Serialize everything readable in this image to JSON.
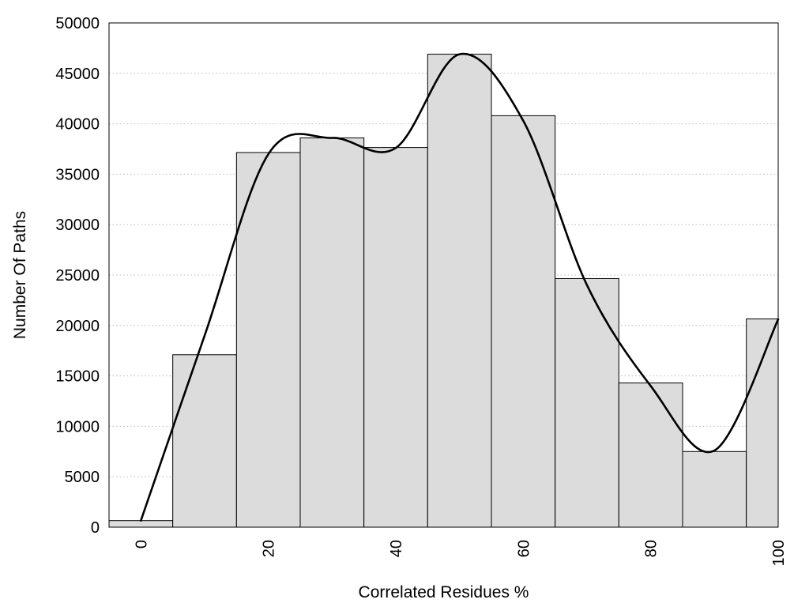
{
  "chart_data": {
    "type": "bar",
    "title": "",
    "xlabel": "Correlated Residues %",
    "ylabel": "Number Of Paths",
    "xlim": [
      -5,
      100
    ],
    "ylim": [
      0,
      50000
    ],
    "grid": "horizontal dotted",
    "x_ticks": [
      "0",
      "20",
      "40",
      "60",
      "80",
      "100"
    ],
    "y_ticks": [
      "0",
      "5000",
      "10000",
      "15000",
      "20000",
      "25000",
      "30000",
      "35000",
      "40000",
      "45000",
      "50000"
    ],
    "bar_width": 10,
    "bars": [
      {
        "x": 0,
        "value": 650
      },
      {
        "x": 10,
        "value": 17100
      },
      {
        "x": 20,
        "value": 37150
      },
      {
        "x": 30,
        "value": 38600
      },
      {
        "x": 40,
        "value": 37650
      },
      {
        "x": 50,
        "value": 46900
      },
      {
        "x": 60,
        "value": 40800
      },
      {
        "x": 70,
        "value": 24650
      },
      {
        "x": 80,
        "value": 14300
      },
      {
        "x": 90,
        "value": 7500
      },
      {
        "x": 100,
        "value": 20650
      }
    ],
    "curve": {
      "type": "line",
      "x": [
        0,
        10,
        20,
        30,
        40,
        50,
        60,
        70,
        80,
        90,
        100
      ],
      "y": [
        650,
        19000,
        37000,
        38600,
        37600,
        46900,
        40300,
        24000,
        14000,
        7600,
        20600
      ]
    },
    "colors": {
      "bar_fill": "#dcdcdc",
      "bar_stroke": "#000000",
      "curve": "#000000",
      "grid": "#bbbbbb"
    }
  }
}
